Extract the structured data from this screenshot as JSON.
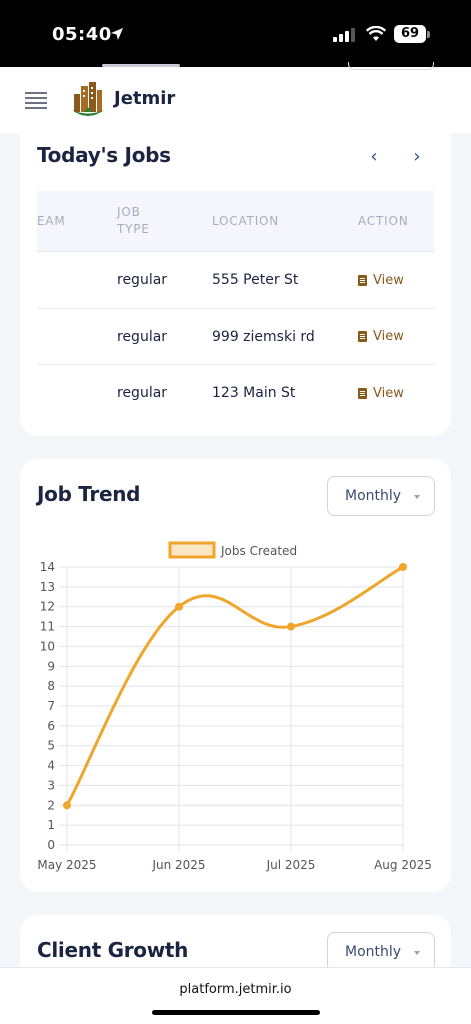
{
  "status_bar": {
    "time": "05:40",
    "battery": "69"
  },
  "app": {
    "brand": "Jetmir"
  },
  "jobs": {
    "title": "Today's Jobs",
    "prev_icon": "‹",
    "next_icon": "›",
    "headers": {
      "team": "EAM",
      "job_type": "JOB TYPE",
      "location": "LOCATION",
      "action": "ACTION"
    },
    "rows": [
      {
        "team": "",
        "job_type": "regular",
        "location": "555 Peter St",
        "action": "View"
      },
      {
        "team": "",
        "job_type": "regular",
        "location": "999 ziemski rd",
        "action": "View"
      },
      {
        "team": "",
        "job_type": "regular",
        "location": "123 Main St",
        "action": "View"
      }
    ]
  },
  "trend": {
    "title": "Job Trend",
    "period": "Monthly"
  },
  "client": {
    "title": "Client Growth",
    "period": "Monthly"
  },
  "browser": {
    "url": "platform.jetmir.io"
  },
  "colors": {
    "accent": "#f0a52b",
    "navy": "#1b2441",
    "brown": "#8a5a1a"
  },
  "chart_data": {
    "type": "line",
    "categories": [
      "May 2025",
      "Jun 2025",
      "Jul 2025",
      "Aug 2025"
    ],
    "series": [
      {
        "name": "Jobs Created",
        "values": [
          2,
          12,
          11,
          14
        ]
      }
    ],
    "ylim": [
      0,
      14
    ],
    "yticks": [
      0,
      1,
      2,
      3,
      4,
      5,
      6,
      7,
      8,
      9,
      10,
      11,
      12,
      13,
      14
    ],
    "legend": "top-center",
    "grid": true
  }
}
